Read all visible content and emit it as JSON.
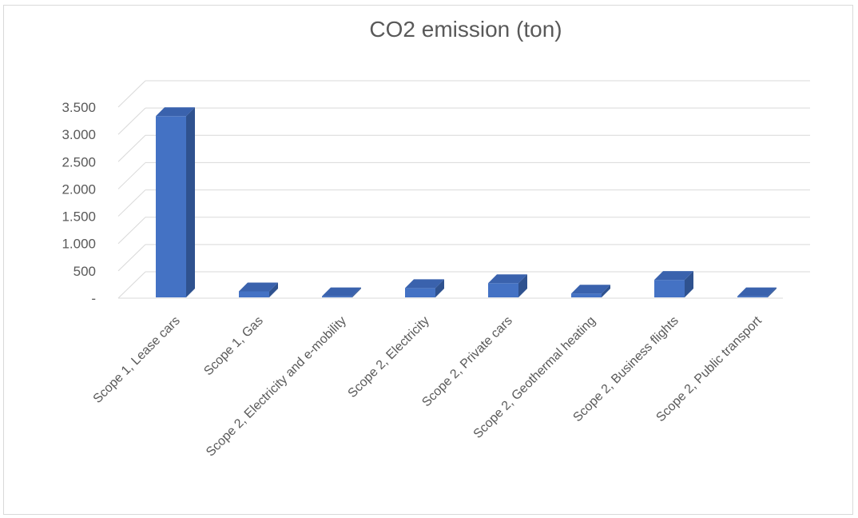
{
  "chart_data": {
    "type": "bar",
    "title": "CO2 emission (ton)",
    "xlabel": "",
    "ylabel": "",
    "categories": [
      "Scope 1, Lease cars",
      "Scope 1, Gas",
      "Scope 2, Electricity and e-mobility",
      "Scope 2, Electricity",
      "Scope 2, Private cars",
      "Scope 2, Geothermal heating",
      "Scope 2, Business flights",
      "Scope 2, Public transport"
    ],
    "values": [
      3320,
      110,
      20,
      170,
      260,
      70,
      320,
      20
    ],
    "ylim": [
      0,
      3500
    ],
    "yticks": [
      {
        "value": 0,
        "label": "-"
      },
      {
        "value": 500,
        "label": "500"
      },
      {
        "value": 1000,
        "label": "1.000"
      },
      {
        "value": 1500,
        "label": "1.500"
      },
      {
        "value": 2000,
        "label": "2.000"
      },
      {
        "value": 2500,
        "label": "2.500"
      },
      {
        "value": 3000,
        "label": "3.000"
      },
      {
        "value": 3500,
        "label": "3.500"
      }
    ],
    "grid": true,
    "bar_color": "#4472c4",
    "bar_side_color": "#2f528f",
    "bar_top_color": "#3a62ad",
    "grid_color": "#d9d9d9",
    "text_color": "#595959"
  }
}
